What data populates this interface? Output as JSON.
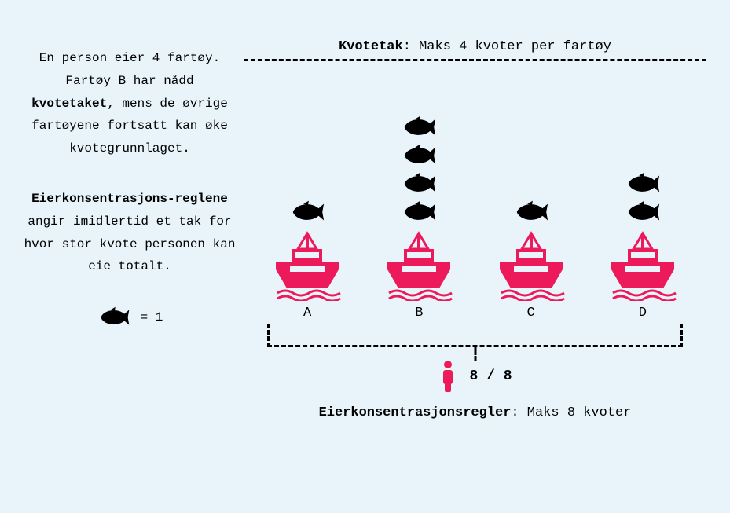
{
  "colors": {
    "background": "#e8f4fa",
    "text": "#000000",
    "fish": "#000000",
    "ship": "#ed1a5b",
    "person": "#ed1a5b"
  },
  "typography": {
    "font_family": "Courier New",
    "body_fontsize_pt": 12,
    "title_fontsize_pt": 13,
    "line_height": 1.8
  },
  "left": {
    "para1_pre": "En person eier 4 fartøy. Fartøy B har nådd ",
    "para1_bold": "kvotetaket",
    "para1_post": ", mens de øvrige fartøyene fortsatt kan øke kvotegrunnlaget.",
    "para2_bold": "Eierkonsentrasjons-reglene",
    "para2_post": " angir imidlertid et tak for hvor stor kvote personen kan eie totalt.",
    "legend_equals": "= 1"
  },
  "diagram": {
    "type": "infographic",
    "top_title_bold": "Kvotetak",
    "top_title_rest": ": Maks 4 kvoter per fartøy",
    "quota_cap_per_vessel": 4,
    "vessels": [
      {
        "label": "A",
        "fish_count": 1
      },
      {
        "label": "B",
        "fish_count": 4
      },
      {
        "label": "C",
        "fish_count": 1
      },
      {
        "label": "D",
        "fish_count": 2
      }
    ],
    "owner_total_current": 8,
    "owner_total_max": 8,
    "owner_fraction": "8 / 8",
    "bottom_title_bold": "Eierkonsentrasjonsregler",
    "bottom_title_rest": ": Maks 8 kvoter",
    "icon_sizes": {
      "fish_w": 48,
      "fish_h": 34,
      "ship_w": 100,
      "ship_h": 90,
      "person_w": 26,
      "person_h": 42,
      "legend_fish_w": 44,
      "legend_fish_h": 30
    },
    "dash_border_width": 3
  }
}
